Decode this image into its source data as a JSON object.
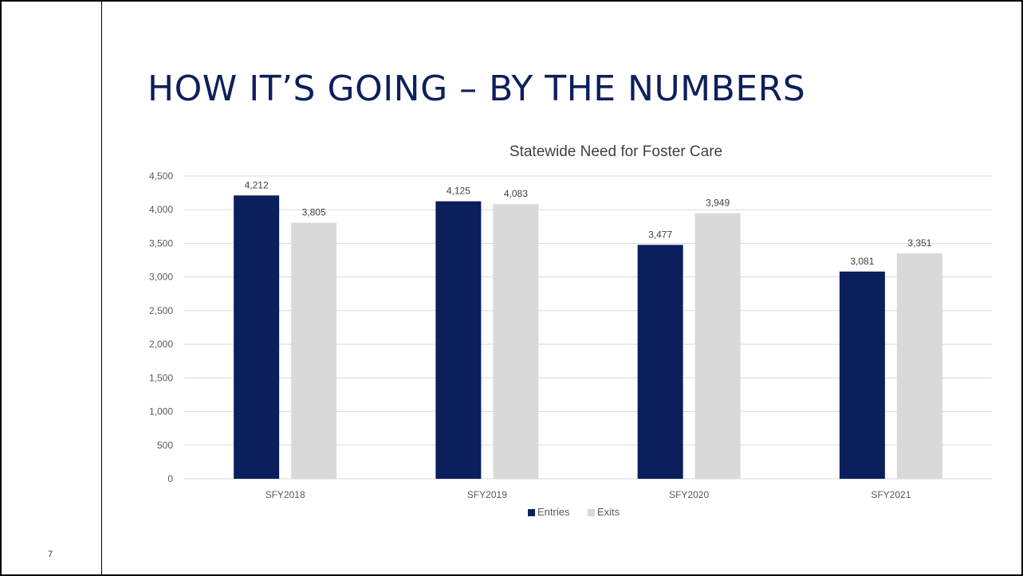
{
  "slide": {
    "title": "HOW IT’S GOING – BY THE NUMBERS",
    "page_number": "7"
  },
  "colors": {
    "title": "#0d1f5c",
    "entries": "#0a1f5c",
    "exits": "#d9d9d9",
    "gridline": "#d9d9d9",
    "axis_text": "#595959"
  },
  "chart_data": {
    "type": "bar",
    "title": "Statewide Need for Foster Care",
    "categories": [
      "SFY2018",
      "SFY2019",
      "SFY2020",
      "SFY2021"
    ],
    "series": [
      {
        "name": "Entries",
        "values": [
          4212,
          4125,
          3477,
          3081
        ],
        "labels": [
          "4,212",
          "4,125",
          "3,477",
          "3,081"
        ]
      },
      {
        "name": "Exits",
        "values": [
          3805,
          4083,
          3949,
          3351
        ],
        "labels": [
          "3,805",
          "4,083",
          "3,949",
          "3,351"
        ]
      }
    ],
    "ylim": [
      0,
      4500
    ],
    "yticks": [
      0,
      500,
      1000,
      1500,
      2000,
      2500,
      3000,
      3500,
      4000,
      4500
    ],
    "ytick_labels": [
      "0",
      "500",
      "1,000",
      "1,500",
      "2,000",
      "2,500",
      "3,000",
      "3,500",
      "4,000",
      "4,500"
    ],
    "xlabel": "",
    "ylabel": "",
    "grid": true,
    "legend": "bottom"
  }
}
